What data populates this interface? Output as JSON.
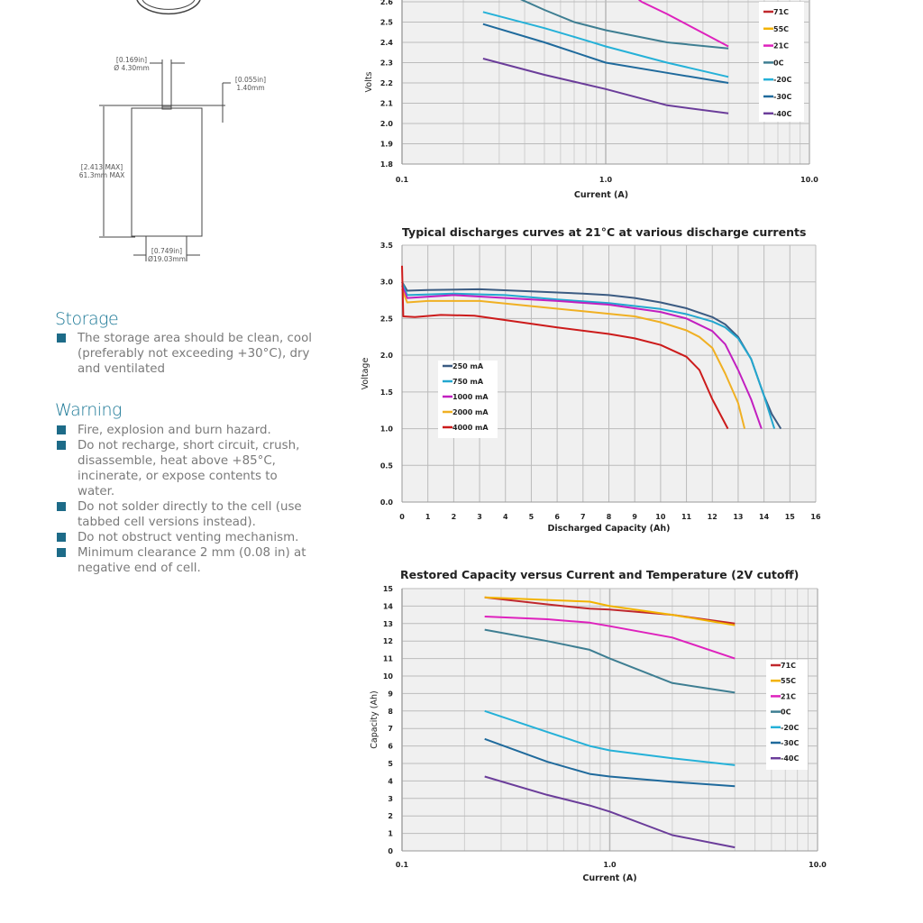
{
  "drawing": {
    "terminal_dia_in": "[0.169in]",
    "terminal_dia_mm": "Ø 4.30mm",
    "terminal_height_in": "[0.055in]",
    "terminal_height_mm": "1.40mm",
    "height_in": "[2.413 MAX]",
    "height_mm": "61.3mm MAX",
    "body_dia_in": "[0.749in]",
    "body_dia_mm": "Ø19.03mm"
  },
  "storage": {
    "title": "Storage",
    "items": [
      "The storage area should be clean, cool (preferably not exceeding +30°C), dry and ventilated"
    ]
  },
  "warning": {
    "title": "Warning",
    "items": [
      "Fire, explosion and burn hazard.",
      "Do not recharge, short circuit, crush, disassemble, heat above +85°C, incinerate, or expose contents to water.",
      "Do not solder directly to the cell (use tabbed cell versions instead).",
      "Do not obstruct venting mechanism.",
      "Minimum clearance 2 mm (0.08 in) at negative end of cell."
    ]
  },
  "chart_data": [
    {
      "type": "line",
      "title": "",
      "xlabel": "Current (A)",
      "ylabel": "Volts",
      "xscale": "log",
      "xlim": [
        0.1,
        10.0
      ],
      "ylim": [
        1.8,
        2.6
      ],
      "xticks": [
        "0.1",
        "1.0",
        "10.0"
      ],
      "yticks": [
        "1.8",
        "1.9",
        "2.0",
        "2.1",
        "2.2",
        "2.3",
        "2.4",
        "2.5",
        "2.6"
      ],
      "grid": true,
      "legend": "right",
      "series": [
        {
          "name": "71C",
          "color": "#c0282d",
          "points": []
        },
        {
          "name": "55C",
          "color": "#f2b300",
          "points": []
        },
        {
          "name": "21C",
          "color": "#de22bd",
          "points": [
            [
              1.2,
              2.68
            ],
            [
              1.5,
              2.6
            ],
            [
              2,
              2.54
            ],
            [
              4,
              2.38
            ]
          ]
        },
        {
          "name": "0C",
          "color": "#3e7e92",
          "points": [
            [
              0.3,
              2.66
            ],
            [
              0.5,
              2.56
            ],
            [
              0.7,
              2.5
            ],
            [
              1,
              2.46
            ],
            [
              2,
              2.4
            ],
            [
              4,
              2.37
            ]
          ]
        },
        {
          "name": "-20C",
          "color": "#25b1d8",
          "points": [
            [
              0.25,
              2.55
            ],
            [
              0.5,
              2.47
            ],
            [
              0.8,
              2.41
            ],
            [
              1,
              2.38
            ],
            [
              2,
              2.3
            ],
            [
              4,
              2.23
            ]
          ]
        },
        {
          "name": "-30C",
          "color": "#1f6a9c",
          "points": [
            [
              0.25,
              2.49
            ],
            [
              0.5,
              2.4
            ],
            [
              1,
              2.3
            ],
            [
              2,
              2.25
            ],
            [
              4,
              2.2
            ]
          ]
        },
        {
          "name": "-40C",
          "color": "#6b3d9a",
          "points": [
            [
              0.25,
              2.32
            ],
            [
              0.5,
              2.24
            ],
            [
              1,
              2.17
            ],
            [
              2,
              2.09
            ],
            [
              4,
              2.05
            ]
          ]
        }
      ]
    },
    {
      "type": "line",
      "title": "Typical discharges curves at 21°C at various discharge currents",
      "xlabel": "Discharged Capacity (Ah)",
      "ylabel": "Voltage",
      "xscale": "linear",
      "xlim": [
        0,
        16
      ],
      "ylim": [
        0.0,
        3.5
      ],
      "xticks": [
        "0",
        "1",
        "2",
        "3",
        "4",
        "5",
        "6",
        "7",
        "8",
        "9",
        "10",
        "11",
        "12",
        "13",
        "14",
        "15",
        "16"
      ],
      "yticks": [
        "0.0",
        "0.5",
        "1.0",
        "1.5",
        "2.0",
        "2.5",
        "3.0",
        "3.5"
      ],
      "grid": true,
      "legend": "left",
      "series": [
        {
          "name": "250 mA",
          "color": "#3b5b82",
          "points": [
            [
              0,
              3.0
            ],
            [
              0.2,
              2.88
            ],
            [
              1,
              2.89
            ],
            [
              3,
              2.9
            ],
            [
              5,
              2.87
            ],
            [
              7,
              2.84
            ],
            [
              8,
              2.82
            ],
            [
              9,
              2.78
            ],
            [
              10,
              2.72
            ],
            [
              11,
              2.64
            ],
            [
              12,
              2.52
            ],
            [
              12.5,
              2.42
            ],
            [
              13,
              2.25
            ],
            [
              13.5,
              1.95
            ],
            [
              14,
              1.45
            ],
            [
              14.3,
              1.2
            ],
            [
              14.65,
              1.0
            ]
          ]
        },
        {
          "name": "750 mA",
          "color": "#23a7cf",
          "points": [
            [
              0,
              3.0
            ],
            [
              0.2,
              2.82
            ],
            [
              2,
              2.84
            ],
            [
              4,
              2.82
            ],
            [
              6,
              2.76
            ],
            [
              8,
              2.71
            ],
            [
              10,
              2.63
            ],
            [
              11,
              2.56
            ],
            [
              12,
              2.46
            ],
            [
              12.5,
              2.38
            ],
            [
              13,
              2.23
            ],
            [
              13.5,
              1.95
            ],
            [
              14,
              1.45
            ],
            [
              14.4,
              1.0
            ]
          ]
        },
        {
          "name": "1000 mA",
          "color": "#c21fc0",
          "points": [
            [
              0,
              2.95
            ],
            [
              0.2,
              2.78
            ],
            [
              2,
              2.82
            ],
            [
              4,
              2.78
            ],
            [
              6,
              2.74
            ],
            [
              8,
              2.69
            ],
            [
              10,
              2.59
            ],
            [
              11,
              2.5
            ],
            [
              12,
              2.33
            ],
            [
              12.5,
              2.15
            ],
            [
              13,
              1.8
            ],
            [
              13.5,
              1.4
            ],
            [
              13.9,
              1.0
            ]
          ]
        },
        {
          "name": "2000 mA",
          "color": "#f0b023",
          "points": [
            [
              0,
              2.9
            ],
            [
              0.2,
              2.72
            ],
            [
              1,
              2.74
            ],
            [
              3,
              2.74
            ],
            [
              5,
              2.67
            ],
            [
              7,
              2.6
            ],
            [
              9,
              2.53
            ],
            [
              10,
              2.45
            ],
            [
              11,
              2.34
            ],
            [
              11.5,
              2.25
            ],
            [
              12,
              2.1
            ],
            [
              12.5,
              1.75
            ],
            [
              13,
              1.35
            ],
            [
              13.25,
              1.0
            ]
          ]
        },
        {
          "name": "4000 mA",
          "color": "#cc1b1b",
          "points": [
            [
              0,
              3.22
            ],
            [
              0.05,
              2.53
            ],
            [
              0.5,
              2.52
            ],
            [
              1.5,
              2.55
            ],
            [
              2.8,
              2.54
            ],
            [
              4,
              2.48
            ],
            [
              6,
              2.38
            ],
            [
              8,
              2.29
            ],
            [
              9,
              2.23
            ],
            [
              10,
              2.14
            ],
            [
              11,
              1.98
            ],
            [
              11.5,
              1.8
            ],
            [
              12,
              1.4
            ],
            [
              12.6,
              1.0
            ]
          ]
        }
      ]
    },
    {
      "type": "line",
      "title": "Restored Capacity versus Current and Temperature (2V cutoff)",
      "xlabel": "Current (A)",
      "ylabel": "Capacity (Ah)",
      "xscale": "log",
      "xlim": [
        0.1,
        10.0
      ],
      "ylim": [
        0,
        15
      ],
      "xticks": [
        "0.1",
        "1.0",
        "10.0"
      ],
      "yticks": [
        "0",
        "1",
        "2",
        "3",
        "4",
        "5",
        "6",
        "7",
        "8",
        "9",
        "10",
        "11",
        "12",
        "13",
        "14",
        "15"
      ],
      "grid": true,
      "legend": "right",
      "series": [
        {
          "name": "71C",
          "color": "#c0282d",
          "points": [
            [
              0.25,
              14.5
            ],
            [
              0.5,
              14.1
            ],
            [
              0.8,
              13.85
            ],
            [
              1,
              13.8
            ],
            [
              2,
              13.5
            ],
            [
              4,
              13.0
            ]
          ]
        },
        {
          "name": "55C",
          "color": "#f2b300",
          "points": [
            [
              0.25,
              14.5
            ],
            [
              0.5,
              14.35
            ],
            [
              0.8,
              14.25
            ],
            [
              1,
              14.0
            ],
            [
              2,
              13.5
            ],
            [
              4,
              12.9
            ]
          ]
        },
        {
          "name": "21C",
          "color": "#de22bd",
          "points": [
            [
              0.25,
              13.4
            ],
            [
              0.5,
              13.25
            ],
            [
              0.8,
              13.05
            ],
            [
              1,
              12.85
            ],
            [
              2,
              12.2
            ],
            [
              4,
              11.0
            ]
          ]
        },
        {
          "name": "0C",
          "color": "#3e7e92",
          "points": [
            [
              0.25,
              12.65
            ],
            [
              0.5,
              12.0
            ],
            [
              0.8,
              11.5
            ],
            [
              1,
              11.0
            ],
            [
              2,
              9.6
            ],
            [
              4,
              9.05
            ]
          ]
        },
        {
          "name": "-20C",
          "color": "#25b1d8",
          "points": [
            [
              0.25,
              8.0
            ],
            [
              0.5,
              6.8
            ],
            [
              0.8,
              6.0
            ],
            [
              1,
              5.75
            ],
            [
              2,
              5.3
            ],
            [
              4,
              4.9
            ]
          ]
        },
        {
          "name": "-30C",
          "color": "#1f6a9c",
          "points": [
            [
              0.25,
              6.4
            ],
            [
              0.5,
              5.1
            ],
            [
              0.8,
              4.4
            ],
            [
              1,
              4.25
            ],
            [
              2,
              3.95
            ],
            [
              4,
              3.7
            ]
          ]
        },
        {
          "name": "-40C",
          "color": "#6b3d9a",
          "points": [
            [
              0.25,
              4.25
            ],
            [
              0.5,
              3.2
            ],
            [
              0.8,
              2.6
            ],
            [
              1,
              2.25
            ],
            [
              2,
              0.9
            ],
            [
              4,
              0.2
            ]
          ]
        }
      ]
    }
  ]
}
